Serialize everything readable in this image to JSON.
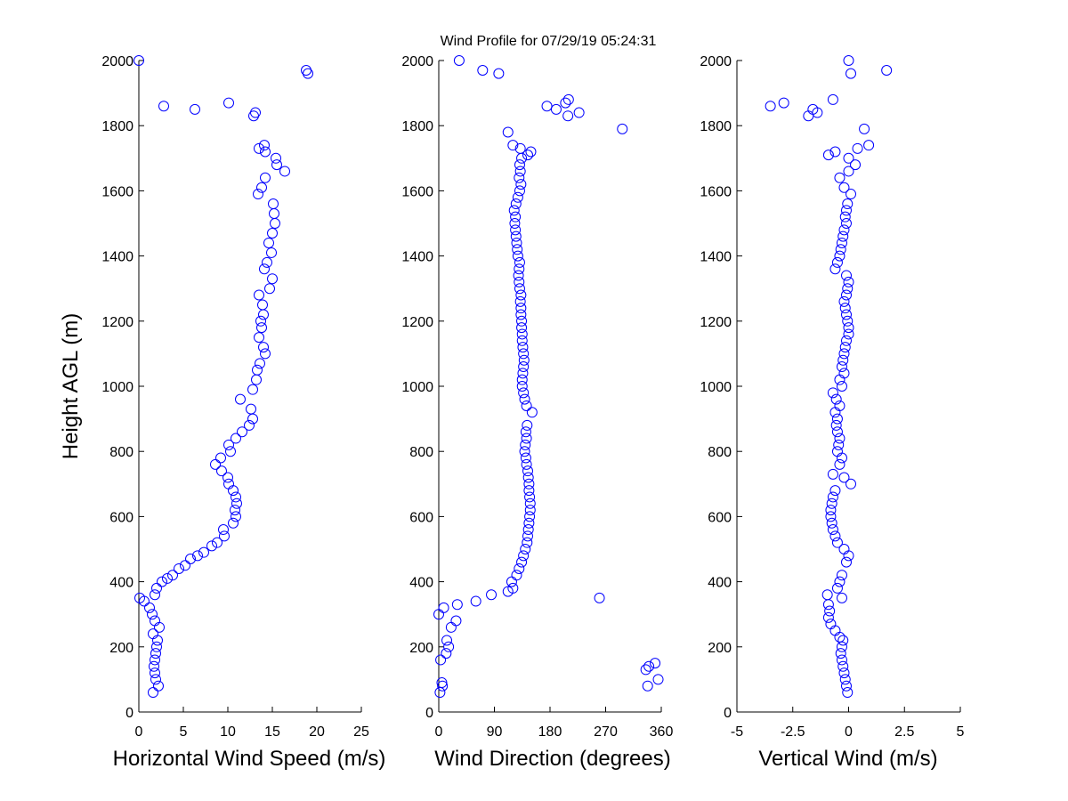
{
  "title": "Wind Profile for  07/29/19 05:24:31",
  "chart_data": [
    {
      "type": "scatter",
      "xlabel": "Horizontal Wind Speed (m/s)",
      "ylabel": "Height AGL (m)",
      "xlim": [
        0,
        25
      ],
      "ylim": [
        0,
        2000
      ],
      "xticks": [
        "0",
        "5",
        "10",
        "15",
        "20",
        "25"
      ],
      "yticks": [
        "0",
        "200",
        "400",
        "600",
        "800",
        "1000",
        "1200",
        "1400",
        "1600",
        "1800",
        "2000"
      ],
      "grid": false,
      "marker": "circle",
      "color": "#0000ff",
      "points": [
        [
          1.6,
          60
        ],
        [
          2.2,
          80
        ],
        [
          1.9,
          100
        ],
        [
          1.8,
          120
        ],
        [
          1.7,
          140
        ],
        [
          1.8,
          160
        ],
        [
          1.9,
          180
        ],
        [
          2.0,
          200
        ],
        [
          2.1,
          220
        ],
        [
          1.6,
          240
        ],
        [
          2.3,
          260
        ],
        [
          1.8,
          280
        ],
        [
          1.5,
          300
        ],
        [
          1.2,
          320
        ],
        [
          0.6,
          340
        ],
        [
          0.1,
          350
        ],
        [
          1.8,
          360
        ],
        [
          2.0,
          380
        ],
        [
          2.6,
          400
        ],
        [
          3.2,
          410
        ],
        [
          3.8,
          420
        ],
        [
          4.5,
          440
        ],
        [
          5.2,
          450
        ],
        [
          5.8,
          470
        ],
        [
          6.6,
          480
        ],
        [
          7.3,
          490
        ],
        [
          8.2,
          510
        ],
        [
          8.8,
          520
        ],
        [
          9.6,
          540
        ],
        [
          9.5,
          560
        ],
        [
          10.6,
          580
        ],
        [
          10.9,
          600
        ],
        [
          10.8,
          620
        ],
        [
          11.0,
          640
        ],
        [
          10.9,
          660
        ],
        [
          10.6,
          680
        ],
        [
          10.1,
          700
        ],
        [
          10.0,
          720
        ],
        [
          9.3,
          740
        ],
        [
          8.6,
          760
        ],
        [
          9.2,
          780
        ],
        [
          10.3,
          800
        ],
        [
          10.1,
          820
        ],
        [
          10.9,
          840
        ],
        [
          11.6,
          860
        ],
        [
          12.4,
          880
        ],
        [
          12.8,
          900
        ],
        [
          12.6,
          930
        ],
        [
          11.4,
          960
        ],
        [
          12.8,
          990
        ],
        [
          13.2,
          1020
        ],
        [
          13.3,
          1050
        ],
        [
          13.6,
          1070
        ],
        [
          14.2,
          1100
        ],
        [
          14.0,
          1120
        ],
        [
          13.5,
          1150
        ],
        [
          13.8,
          1180
        ],
        [
          13.7,
          1200
        ],
        [
          14.0,
          1220
        ],
        [
          13.9,
          1250
        ],
        [
          13.5,
          1280
        ],
        [
          14.7,
          1300
        ],
        [
          15.0,
          1330
        ],
        [
          14.1,
          1360
        ],
        [
          14.4,
          1380
        ],
        [
          14.9,
          1410
        ],
        [
          14.6,
          1440
        ],
        [
          15.0,
          1470
        ],
        [
          15.3,
          1500
        ],
        [
          15.2,
          1530
        ],
        [
          15.1,
          1560
        ],
        [
          13.4,
          1590
        ],
        [
          13.8,
          1610
        ],
        [
          14.2,
          1640
        ],
        [
          16.4,
          1660
        ],
        [
          15.5,
          1680
        ],
        [
          15.4,
          1700
        ],
        [
          14.2,
          1720
        ],
        [
          13.5,
          1730
        ],
        [
          14.1,
          1740
        ],
        [
          12.9,
          1830
        ],
        [
          13.1,
          1840
        ],
        [
          2.8,
          1860
        ],
        [
          6.3,
          1850
        ],
        [
          10.1,
          1870
        ],
        [
          0.0,
          2000
        ],
        [
          18.8,
          1970
        ],
        [
          19.0,
          1960
        ]
      ]
    },
    {
      "type": "scatter",
      "xlabel": "Wind Direction (degrees)",
      "ylabel": "",
      "xlim": [
        0,
        360
      ],
      "ylim": [
        0,
        2000
      ],
      "xticks": [
        "0",
        "90",
        "180",
        "270",
        "360"
      ],
      "yticks": [
        "0",
        "200",
        "400",
        "600",
        "800",
        "1000",
        "1200",
        "1400",
        "1600",
        "1800",
        "2000"
      ],
      "grid": false,
      "marker": "circle",
      "color": "#0000ff",
      "points": [
        [
          2,
          60
        ],
        [
          6,
          80
        ],
        [
          5,
          90
        ],
        [
          12,
          180
        ],
        [
          16,
          200
        ],
        [
          13,
          220
        ],
        [
          3,
          160
        ],
        [
          20,
          260
        ],
        [
          28,
          280
        ],
        [
          0,
          300
        ],
        [
          8,
          320
        ],
        [
          30,
          330
        ],
        [
          60,
          340
        ],
        [
          85,
          360
        ],
        [
          112,
          370
        ],
        [
          120,
          380
        ],
        [
          118,
          400
        ],
        [
          126,
          420
        ],
        [
          130,
          440
        ],
        [
          134,
          460
        ],
        [
          137,
          480
        ],
        [
          140,
          500
        ],
        [
          143,
          520
        ],
        [
          144,
          540
        ],
        [
          145,
          560
        ],
        [
          146,
          580
        ],
        [
          147,
          600
        ],
        [
          148,
          620
        ],
        [
          148,
          640
        ],
        [
          147,
          660
        ],
        [
          146,
          680
        ],
        [
          146,
          700
        ],
        [
          145,
          720
        ],
        [
          144,
          740
        ],
        [
          142,
          760
        ],
        [
          141,
          780
        ],
        [
          139,
          800
        ],
        [
          140,
          820
        ],
        [
          142,
          840
        ],
        [
          141,
          860
        ],
        [
          143,
          880
        ],
        [
          151,
          920
        ],
        [
          142,
          940
        ],
        [
          139,
          960
        ],
        [
          137,
          980
        ],
        [
          135,
          1000
        ],
        [
          135,
          1020
        ],
        [
          136,
          1040
        ],
        [
          137,
          1060
        ],
        [
          138,
          1080
        ],
        [
          137,
          1100
        ],
        [
          136,
          1120
        ],
        [
          135,
          1140
        ],
        [
          135,
          1160
        ],
        [
          134,
          1180
        ],
        [
          134,
          1200
        ],
        [
          133,
          1220
        ],
        [
          133,
          1240
        ],
        [
          132,
          1260
        ],
        [
          133,
          1280
        ],
        [
          131,
          1300
        ],
        [
          130,
          1320
        ],
        [
          129,
          1340
        ],
        [
          130,
          1360
        ],
        [
          131,
          1380
        ],
        [
          128,
          1400
        ],
        [
          127,
          1420
        ],
        [
          126,
          1440
        ],
        [
          125,
          1460
        ],
        [
          124,
          1480
        ],
        [
          123,
          1500
        ],
        [
          124,
          1520
        ],
        [
          122,
          1540
        ],
        [
          125,
          1560
        ],
        [
          128,
          1580
        ],
        [
          131,
          1600
        ],
        [
          133,
          1620
        ],
        [
          130,
          1640
        ],
        [
          132,
          1660
        ],
        [
          131,
          1680
        ],
        [
          134,
          1700
        ],
        [
          144,
          1710
        ],
        [
          149,
          1720
        ],
        [
          120,
          1740
        ],
        [
          112,
          1780
        ],
        [
          132,
          1730
        ],
        [
          175,
          1860
        ],
        [
          190,
          1850
        ],
        [
          205,
          1870
        ],
        [
          210,
          1880
        ],
        [
          209,
          1830
        ],
        [
          227,
          1840
        ],
        [
          297,
          1790
        ],
        [
          33,
          2000
        ],
        [
          71,
          1970
        ],
        [
          97,
          1960
        ],
        [
          260,
          350
        ],
        [
          335,
          130
        ],
        [
          340,
          140
        ],
        [
          350,
          150
        ],
        [
          338,
          80
        ],
        [
          355,
          100
        ]
      ]
    },
    {
      "type": "scatter",
      "xlabel": "Vertical Wind (m/s)",
      "ylabel": "",
      "xlim": [
        -5,
        5
      ],
      "ylim": [
        0,
        2000
      ],
      "xticks": [
        "-5",
        "-2.5",
        "0",
        "2.5",
        "5"
      ],
      "yticks": [
        "0",
        "200",
        "400",
        "600",
        "800",
        "1000",
        "1200",
        "1400",
        "1600",
        "1800",
        "2000"
      ],
      "grid": false,
      "marker": "circle",
      "color": "#0000ff",
      "points": [
        [
          -0.05,
          60
        ],
        [
          -0.1,
          80
        ],
        [
          -0.15,
          100
        ],
        [
          -0.2,
          120
        ],
        [
          -0.25,
          140
        ],
        [
          -0.3,
          160
        ],
        [
          -0.35,
          180
        ],
        [
          -0.3,
          200
        ],
        [
          -0.25,
          220
        ],
        [
          -0.4,
          230
        ],
        [
          -0.6,
          250
        ],
        [
          -0.8,
          270
        ],
        [
          -0.9,
          290
        ],
        [
          -0.85,
          310
        ],
        [
          -0.9,
          330
        ],
        [
          -0.95,
          360
        ],
        [
          -0.3,
          350
        ],
        [
          -0.5,
          380
        ],
        [
          -0.4,
          400
        ],
        [
          -0.3,
          420
        ],
        [
          -0.1,
          460
        ],
        [
          0.0,
          480
        ],
        [
          -0.2,
          500
        ],
        [
          -0.5,
          520
        ],
        [
          -0.6,
          540
        ],
        [
          -0.7,
          560
        ],
        [
          -0.75,
          580
        ],
        [
          -0.8,
          600
        ],
        [
          -0.8,
          620
        ],
        [
          -0.75,
          640
        ],
        [
          -0.7,
          660
        ],
        [
          -0.6,
          680
        ],
        [
          0.1,
          700
        ],
        [
          -0.2,
          720
        ],
        [
          -0.7,
          730
        ],
        [
          -0.4,
          760
        ],
        [
          -0.3,
          780
        ],
        [
          -0.5,
          800
        ],
        [
          -0.45,
          820
        ],
        [
          -0.4,
          840
        ],
        [
          -0.5,
          860
        ],
        [
          -0.55,
          880
        ],
        [
          -0.5,
          900
        ],
        [
          -0.6,
          920
        ],
        [
          -0.4,
          940
        ],
        [
          -0.55,
          960
        ],
        [
          -0.7,
          980
        ],
        [
          -0.3,
          1000
        ],
        [
          -0.4,
          1020
        ],
        [
          -0.2,
          1040
        ],
        [
          -0.3,
          1060
        ],
        [
          -0.25,
          1080
        ],
        [
          -0.2,
          1100
        ],
        [
          -0.15,
          1120
        ],
        [
          -0.1,
          1140
        ],
        [
          0.0,
          1160
        ],
        [
          0.0,
          1180
        ],
        [
          -0.05,
          1200
        ],
        [
          -0.1,
          1220
        ],
        [
          -0.15,
          1240
        ],
        [
          -0.2,
          1260
        ],
        [
          -0.1,
          1280
        ],
        [
          -0.05,
          1300
        ],
        [
          0.0,
          1320
        ],
        [
          -0.1,
          1340
        ],
        [
          -0.6,
          1360
        ],
        [
          -0.5,
          1380
        ],
        [
          -0.4,
          1400
        ],
        [
          -0.35,
          1420
        ],
        [
          -0.3,
          1440
        ],
        [
          -0.25,
          1460
        ],
        [
          -0.2,
          1480
        ],
        [
          -0.1,
          1500
        ],
        [
          -0.15,
          1520
        ],
        [
          -0.1,
          1540
        ],
        [
          -0.05,
          1560
        ],
        [
          0.1,
          1590
        ],
        [
          -0.2,
          1610
        ],
        [
          -0.4,
          1640
        ],
        [
          0.0,
          1660
        ],
        [
          0.3,
          1680
        ],
        [
          0.0,
          1700
        ],
        [
          0.4,
          1730
        ],
        [
          -0.9,
          1710
        ],
        [
          -0.6,
          1720
        ],
        [
          0.9,
          1740
        ],
        [
          0.7,
          1790
        ],
        [
          -3.5,
          1860
        ],
        [
          -2.9,
          1870
        ],
        [
          -1.6,
          1850
        ],
        [
          -1.4,
          1840
        ],
        [
          -1.8,
          1830
        ],
        [
          -0.7,
          1880
        ],
        [
          0.0,
          2000
        ],
        [
          1.7,
          1970
        ],
        [
          0.1,
          1960
        ]
      ]
    }
  ]
}
